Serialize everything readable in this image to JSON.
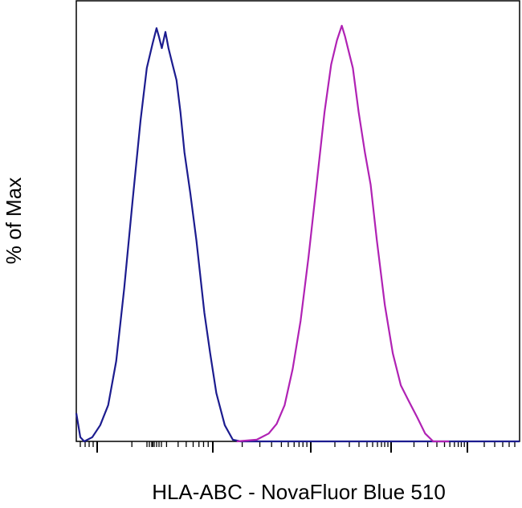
{
  "chart_data": {
    "type": "line",
    "xlabel": "HLA-ABC - NovaFluor Blue 510",
    "ylabel": "% of Max",
    "xlim": [
      0,
      100
    ],
    "ylim": [
      0,
      100
    ],
    "series": [
      {
        "color": "#1c1c8f",
        "x": [
          0,
          0.9,
          1.8,
          3.6,
          5.4,
          7.2,
          9.0,
          10.8,
          12.7,
          14.5,
          15.9,
          17.2,
          18.1,
          18.6,
          19.3,
          20.1,
          20.8,
          21.7,
          22.6,
          23.5,
          24.4,
          25.7,
          27.1,
          28.9,
          30.2,
          31.6,
          33.5,
          35.3,
          37.1,
          100
        ],
        "values": [
          6.8,
          1.0,
          0,
          1.0,
          3.9,
          8.7,
          19.3,
          36.7,
          57.9,
          77.2,
          89.8,
          95.6,
          99.4,
          97.5,
          94.6,
          98.5,
          94.6,
          90.7,
          86.9,
          79.2,
          69.5,
          59.8,
          48.3,
          30.9,
          21.2,
          11.6,
          3.9,
          0.4,
          0,
          0
        ]
      },
      {
        "color": "#b022b4",
        "x": [
          36.2,
          40.7,
          43.4,
          45.2,
          47.0,
          48.8,
          50.6,
          52.4,
          54.2,
          56.0,
          57.5,
          58.8,
          59.9,
          60.6,
          61.5,
          62.4,
          63.7,
          65.1,
          66.4,
          67.8,
          69.6,
          71.4,
          73.2,
          75.0,
          76.9,
          78.7,
          80.5,
          84.1
        ],
        "values": [
          0,
          0.4,
          1.9,
          4.2,
          8.7,
          17.4,
          29.0,
          44.4,
          61.8,
          79.2,
          90.7,
          96.5,
          100,
          97.5,
          93.6,
          89.8,
          79.2,
          69.5,
          61.8,
          48.3,
          32.8,
          21.2,
          13.5,
          9.7,
          5.8,
          1.9,
          0,
          0
        ]
      }
    ]
  }
}
